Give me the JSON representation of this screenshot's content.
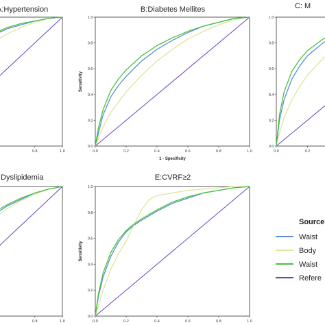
{
  "chart_data": [
    {
      "id": "A",
      "type": "line",
      "title": "A:Hypertension",
      "xlabel": "",
      "ylabel": "",
      "xlim": [
        0,
        1
      ],
      "ylim": [
        0,
        1
      ],
      "x_ticks": [
        "0.8",
        "1.0"
      ],
      "y_ticks": [],
      "series": [
        {
          "key": "s1",
          "color": "#5B8BD6",
          "x": [
            0,
            0.02,
            0.05,
            0.1,
            0.2,
            0.3,
            0.4,
            0.5,
            0.6,
            0.7,
            0.8,
            0.9,
            1.0
          ],
          "y": [
            0,
            0.2,
            0.34,
            0.48,
            0.63,
            0.73,
            0.8,
            0.86,
            0.91,
            0.94,
            0.97,
            0.99,
            1.0
          ]
        },
        {
          "key": "s2",
          "color": "#DCE79A",
          "x": [
            0,
            0.02,
            0.05,
            0.1,
            0.2,
            0.3,
            0.4,
            0.5,
            0.6,
            0.7,
            0.8,
            0.9,
            1.0
          ],
          "y": [
            0,
            0.14,
            0.26,
            0.39,
            0.54,
            0.65,
            0.74,
            0.81,
            0.87,
            0.92,
            0.96,
            0.99,
            1.0
          ]
        },
        {
          "key": "s3",
          "color": "#44C23A",
          "x": [
            0,
            0.02,
            0.05,
            0.1,
            0.2,
            0.3,
            0.4,
            0.5,
            0.6,
            0.7,
            0.8,
            0.9,
            1.0
          ],
          "y": [
            0,
            0.22,
            0.37,
            0.51,
            0.66,
            0.75,
            0.82,
            0.87,
            0.92,
            0.95,
            0.97,
            0.99,
            1.0
          ]
        },
        {
          "key": "s4",
          "color": "#6A3FC0",
          "x": [
            0,
            1
          ],
          "y": [
            0,
            1
          ]
        }
      ]
    },
    {
      "id": "B",
      "type": "line",
      "title": "B:Diabetes Mellites",
      "xlabel": "1 - Specificity",
      "ylabel": "Sensitivity",
      "xlim": [
        0,
        1
      ],
      "ylim": [
        0,
        1
      ],
      "x_ticks": [
        "0.0",
        "0.2",
        "0.4",
        "0.6",
        "0.8",
        "1.0"
      ],
      "y_ticks": [
        "0.0",
        "0.2",
        "0.4",
        "0.6",
        "0.8",
        "1.0"
      ],
      "series": [
        {
          "key": "s1",
          "color": "#5B8BD6",
          "x": [
            0,
            0.02,
            0.05,
            0.1,
            0.15,
            0.2,
            0.3,
            0.4,
            0.5,
            0.6,
            0.7,
            0.8,
            0.9,
            1.0
          ],
          "y": [
            0,
            0.1,
            0.24,
            0.38,
            0.47,
            0.54,
            0.66,
            0.75,
            0.82,
            0.88,
            0.93,
            0.96,
            0.99,
            1.0
          ]
        },
        {
          "key": "s2",
          "color": "#DCE79A",
          "x": [
            0,
            0.02,
            0.05,
            0.1,
            0.15,
            0.2,
            0.3,
            0.4,
            0.5,
            0.6,
            0.7,
            0.8,
            0.9,
            1.0
          ],
          "y": [
            0,
            0.06,
            0.15,
            0.26,
            0.34,
            0.42,
            0.55,
            0.66,
            0.75,
            0.83,
            0.89,
            0.94,
            0.98,
            1.0
          ]
        },
        {
          "key": "s3",
          "color": "#44C23A",
          "x": [
            0,
            0.02,
            0.05,
            0.1,
            0.15,
            0.2,
            0.3,
            0.4,
            0.5,
            0.6,
            0.7,
            0.8,
            0.9,
            1.0
          ],
          "y": [
            0,
            0.14,
            0.28,
            0.43,
            0.52,
            0.59,
            0.7,
            0.78,
            0.84,
            0.89,
            0.93,
            0.96,
            0.99,
            1.0
          ]
        },
        {
          "key": "s4",
          "color": "#6A3FC0",
          "x": [
            0,
            1
          ],
          "y": [
            0,
            1
          ]
        }
      ]
    },
    {
      "id": "C",
      "type": "line",
      "title": "C: M",
      "xlabel": "",
      "ylabel": "",
      "xlim": [
        0,
        1
      ],
      "ylim": [
        0,
        1
      ],
      "x_ticks": [
        "0.0",
        "0.2"
      ],
      "y_ticks": [
        "0.0",
        "0.2",
        "0.4",
        "0.6",
        "0.8",
        "1.0"
      ],
      "series": [
        {
          "key": "s1",
          "color": "#5B8BD6",
          "x": [
            0,
            0.02,
            0.05,
            0.1,
            0.15,
            0.2,
            0.3,
            0.4,
            0.5,
            0.6,
            0.8,
            1.0
          ],
          "y": [
            0,
            0.2,
            0.36,
            0.52,
            0.62,
            0.7,
            0.8,
            0.86,
            0.9,
            0.93,
            0.97,
            1.0
          ]
        },
        {
          "key": "s2",
          "color": "#DCE79A",
          "x": [
            0,
            0.02,
            0.05,
            0.1,
            0.15,
            0.2,
            0.3,
            0.4,
            0.5,
            0.6,
            0.8,
            1.0
          ],
          "y": [
            0,
            0.1,
            0.22,
            0.36,
            0.46,
            0.55,
            0.68,
            0.77,
            0.84,
            0.89,
            0.96,
            1.0
          ]
        },
        {
          "key": "s3",
          "color": "#44C23A",
          "x": [
            0,
            0.02,
            0.05,
            0.1,
            0.15,
            0.2,
            0.3,
            0.4,
            0.5,
            0.6,
            0.8,
            1.0
          ],
          "y": [
            0,
            0.24,
            0.42,
            0.58,
            0.67,
            0.74,
            0.83,
            0.88,
            0.92,
            0.94,
            0.98,
            1.0
          ]
        },
        {
          "key": "s4",
          "color": "#6A3FC0",
          "x": [
            0,
            1
          ],
          "y": [
            0,
            1
          ]
        }
      ]
    },
    {
      "id": "D",
      "type": "line",
      "title": "D:Dyslipidemia",
      "xlabel": "",
      "ylabel": "",
      "xlim": [
        0,
        1
      ],
      "ylim": [
        0,
        1
      ],
      "x_ticks": [
        "0.8",
        "1.0"
      ],
      "y_ticks": [],
      "series": [
        {
          "key": "s1",
          "color": "#5B8BD6",
          "x": [
            0,
            0.05,
            0.1,
            0.2,
            0.3,
            0.4,
            0.5,
            0.6,
            0.7,
            0.8,
            0.9,
            1.0
          ],
          "y": [
            0,
            0.2,
            0.32,
            0.48,
            0.6,
            0.7,
            0.78,
            0.85,
            0.9,
            0.95,
            0.98,
            1.0
          ]
        },
        {
          "key": "s2",
          "color": "#DCE79A",
          "x": [
            0,
            0.05,
            0.1,
            0.2,
            0.3,
            0.4,
            0.5,
            0.6,
            0.7,
            0.8,
            0.9,
            1.0
          ],
          "y": [
            0,
            0.15,
            0.26,
            0.42,
            0.55,
            0.66,
            0.75,
            0.83,
            0.89,
            0.94,
            0.98,
            1.0
          ]
        },
        {
          "key": "s3",
          "color": "#44C23A",
          "x": [
            0,
            0.05,
            0.1,
            0.2,
            0.3,
            0.4,
            0.5,
            0.6,
            0.7,
            0.8,
            0.9,
            1.0
          ],
          "y": [
            0,
            0.22,
            0.34,
            0.5,
            0.62,
            0.72,
            0.8,
            0.86,
            0.91,
            0.95,
            0.98,
            1.0
          ]
        },
        {
          "key": "s4",
          "color": "#6A3FC0",
          "x": [
            0,
            1
          ],
          "y": [
            0,
            1
          ]
        }
      ]
    },
    {
      "id": "E",
      "type": "line",
      "title": "E:CVRF≥2",
      "xlabel": "",
      "ylabel": "Sensitivity",
      "xlim": [
        0,
        1
      ],
      "ylim": [
        0,
        1
      ],
      "x_ticks": [
        "0.0",
        "0.2",
        "0.4",
        "0.6",
        "0.8",
        "1.0"
      ],
      "y_ticks": [
        "0.0",
        "0.2",
        "0.4",
        "0.6",
        "0.8",
        "1.0"
      ],
      "series": [
        {
          "key": "s1",
          "color": "#5B8BD6",
          "x": [
            0,
            0.02,
            0.05,
            0.1,
            0.15,
            0.2,
            0.25,
            0.3,
            0.4,
            0.5,
            0.6,
            0.7,
            0.8,
            0.9,
            1.0
          ],
          "y": [
            0,
            0.15,
            0.3,
            0.46,
            0.57,
            0.65,
            0.7,
            0.74,
            0.81,
            0.87,
            0.91,
            0.95,
            0.97,
            0.99,
            1.0
          ]
        },
        {
          "key": "s2",
          "color": "#DCE79A",
          "x": [
            0,
            0.02,
            0.05,
            0.1,
            0.15,
            0.2,
            0.25,
            0.3,
            0.35,
            0.4,
            0.5,
            0.6,
            0.7,
            0.8,
            0.9,
            1.0
          ],
          "y": [
            0,
            0.08,
            0.2,
            0.36,
            0.48,
            0.58,
            0.7,
            0.82,
            0.9,
            0.93,
            0.95,
            0.97,
            0.98,
            0.99,
            1.0,
            1.0
          ]
        },
        {
          "key": "s3",
          "color": "#44C23A",
          "x": [
            0,
            0.02,
            0.05,
            0.1,
            0.15,
            0.2,
            0.25,
            0.3,
            0.4,
            0.5,
            0.6,
            0.7,
            0.8,
            0.9,
            1.0
          ],
          "y": [
            0,
            0.17,
            0.33,
            0.49,
            0.59,
            0.66,
            0.71,
            0.75,
            0.82,
            0.88,
            0.92,
            0.95,
            0.97,
            0.99,
            1.0
          ]
        },
        {
          "key": "s4",
          "color": "#6A3FC0",
          "x": [
            0,
            1
          ],
          "y": [
            0,
            1
          ]
        }
      ]
    }
  ],
  "legend": {
    "title": "Source",
    "placement": "right",
    "entries": [
      {
        "key": "s1",
        "label": "Waist",
        "color": "#5B8BD6"
      },
      {
        "key": "s2",
        "label": "Body",
        "color": "#DCE79A"
      },
      {
        "key": "s3",
        "label": "Waist",
        "color": "#44C23A"
      },
      {
        "key": "s4",
        "label": "Refere",
        "color": "#6A3FC0"
      }
    ]
  }
}
